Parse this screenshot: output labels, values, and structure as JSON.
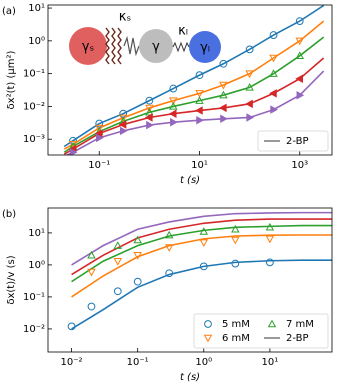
{
  "chart_data": [
    {
      "type": "scatter",
      "panel_label": "(a)",
      "x_label": "t (s)",
      "y_label": "δx²(t) (μm²)",
      "xscale": "log",
      "yscale": "log",
      "xlim": [
        0.0095,
        4400
      ],
      "ylim": [
        0.00033,
        12.4
      ],
      "xticks": [
        {
          "value": 0.1,
          "label": "10⁻¹"
        },
        {
          "value": 10,
          "label": "10¹"
        },
        {
          "value": 1000,
          "label": "10³"
        }
      ],
      "yticks": [
        {
          "value": 0.001,
          "label": "10⁻³"
        },
        {
          "value": 0.01,
          "label": "10⁻²"
        },
        {
          "value": 0.1,
          "label": "10⁻¹"
        },
        {
          "value": 1,
          "label": "10⁰"
        },
        {
          "value": 10,
          "label": "10¹"
        }
      ],
      "legend": "lower right",
      "legend_columns": 1,
      "fit_label": "2-BP",
      "fit_color": "#808080",
      "inset": {
        "gamma_s": "γₛ",
        "gamma": "γ",
        "gamma_l": "γₗ",
        "kappa_s": "κₛ",
        "kappa_l": "κₗ"
      },
      "series": [
        {
          "color": "#1f77b4",
          "marker": "o",
          "fill": "none",
          "x": [
            0.03,
            0.1,
            0.3,
            1,
            3,
            10,
            30,
            100,
            300,
            1000
          ],
          "values": [
            0.0009,
            0.003,
            0.006,
            0.015,
            0.035,
            0.09,
            0.2,
            0.55,
            1.5,
            4
          ]
        },
        {
          "color": "#ff7f0e",
          "marker": "v",
          "fill": "none",
          "x": [
            0.03,
            0.1,
            0.3,
            1,
            3,
            10,
            30,
            100,
            300,
            1000
          ],
          "values": [
            0.0007,
            0.0022,
            0.0045,
            0.009,
            0.015,
            0.025,
            0.045,
            0.1,
            0.3,
            1
          ]
        },
        {
          "color": "#2ca02c",
          "marker": "^",
          "fill": "none",
          "x": [
            0.03,
            0.1,
            0.3,
            1,
            3,
            10,
            30,
            100,
            300,
            1000
          ],
          "values": [
            0.0006,
            0.0017,
            0.0035,
            0.0066,
            0.01,
            0.015,
            0.022,
            0.038,
            0.1,
            0.35
          ]
        },
        {
          "color": "#d62728",
          "marker": "<",
          "fill": "#d62728",
          "x": [
            0.03,
            0.1,
            0.3,
            1,
            3,
            10,
            30,
            100,
            300,
            1000
          ],
          "values": [
            0.0005,
            0.0015,
            0.0028,
            0.0046,
            0.006,
            0.0075,
            0.009,
            0.012,
            0.025,
            0.07
          ]
        },
        {
          "color": "#9467bd",
          "marker": ">",
          "fill": "#9467bd",
          "x": [
            0.03,
            0.1,
            0.3,
            1,
            3,
            10,
            30,
            100,
            300,
            1000
          ],
          "values": [
            0.0004,
            0.0011,
            0.0018,
            0.0027,
            0.0033,
            0.0038,
            0.0042,
            0.0046,
            0.008,
            0.022
          ]
        },
        {
          "color": "#1f77b4",
          "x": [
            0.02,
            0.03,
            0.1,
            0.3,
            1,
            3,
            10,
            30,
            100,
            300,
            1000,
            3000
          ],
          "values": [
            0.0006,
            0.0009,
            0.003,
            0.006,
            0.015,
            0.035,
            0.09,
            0.2,
            0.55,
            1.5,
            4,
            12
          ]
        },
        {
          "color": "#ff7f0e",
          "x": [
            0.02,
            0.03,
            0.1,
            0.3,
            1,
            3,
            10,
            30,
            100,
            300,
            1000,
            3000
          ],
          "values": [
            0.0005,
            0.0007,
            0.0022,
            0.0045,
            0.009,
            0.015,
            0.025,
            0.045,
            0.1,
            0.3,
            1,
            4
          ]
        },
        {
          "color": "#2ca02c",
          "x": [
            0.02,
            0.03,
            0.1,
            0.3,
            1,
            3,
            10,
            30,
            100,
            300,
            1000,
            3000
          ],
          "values": [
            0.0004,
            0.0006,
            0.0017,
            0.0035,
            0.0066,
            0.01,
            0.015,
            0.022,
            0.038,
            0.1,
            0.35,
            1.3
          ]
        },
        {
          "color": "#d62728",
          "x": [
            0.02,
            0.03,
            0.1,
            0.3,
            1,
            3,
            10,
            30,
            100,
            300,
            1000,
            3000
          ],
          "values": [
            0.00035,
            0.0005,
            0.0015,
            0.0028,
            0.0046,
            0.006,
            0.0075,
            0.009,
            0.012,
            0.025,
            0.07,
            0.3
          ]
        },
        {
          "color": "#9467bd",
          "x": [
            0.02,
            0.03,
            0.1,
            0.3,
            1,
            3,
            10,
            30,
            100,
            300,
            1000,
            3000
          ],
          "values": [
            0.0003,
            0.0004,
            0.0011,
            0.0018,
            0.0027,
            0.0033,
            0.0038,
            0.0042,
            0.0046,
            0.008,
            0.022,
            0.12
          ]
        }
      ]
    },
    {
      "type": "scatter",
      "panel_label": "(b)",
      "x_label": "t (s)",
      "y_label": "δx(t)/v (s)",
      "xscale": "log",
      "yscale": "log",
      "xlim": [
        0.0044,
        87
      ],
      "ylim": [
        0.0019,
        60
      ],
      "xticks": [
        {
          "value": 0.01,
          "label": "10⁻²"
        },
        {
          "value": 0.1,
          "label": "10⁻¹"
        },
        {
          "value": 1,
          "label": "10⁰"
        },
        {
          "value": 10,
          "label": "10¹"
        }
      ],
      "yticks": [
        {
          "value": 0.01,
          "label": "10⁻²"
        },
        {
          "value": 0.1,
          "label": "10⁻¹"
        },
        {
          "value": 1,
          "label": "10⁰"
        },
        {
          "value": 10,
          "label": "10¹"
        }
      ],
      "legend": "lower right",
      "legend_columns": 2,
      "fit_label": "2-BP",
      "fit_color": "#808080",
      "series": [
        {
          "name": "5 mM",
          "color": "#1f77b4",
          "marker": "o",
          "fill": "none",
          "x": [
            0.01,
            0.02,
            0.05,
            0.1,
            0.3,
            1,
            3,
            10
          ],
          "values": [
            0.012,
            0.05,
            0.15,
            0.3,
            0.55,
            0.9,
            1.1,
            1.2
          ]
        },
        {
          "name": "6 mM",
          "color": "#ff7f0e",
          "marker": "v",
          "fill": "none",
          "x": [
            0.02,
            0.05,
            0.1,
            0.3,
            1,
            3,
            10
          ],
          "values": [
            0.6,
            1.3,
            2,
            3.5,
            5,
            6,
            6.5
          ]
        },
        {
          "name": "7 mM",
          "color": "#2ca02c",
          "marker": "^",
          "fill": "none",
          "x": [
            0.02,
            0.05,
            0.1,
            0.3,
            1,
            3,
            10
          ],
          "values": [
            2,
            4,
            6,
            8.5,
            11,
            13,
            15
          ]
        },
        {
          "color": "#1f77b4",
          "x": [
            0.01,
            0.03,
            0.1,
            0.3,
            1,
            3,
            10,
            30,
            87
          ],
          "values": [
            0.01,
            0.04,
            0.2,
            0.5,
            0.9,
            1.2,
            1.35,
            1.4,
            1.4
          ]
        },
        {
          "color": "#ff7f0e",
          "x": [
            0.01,
            0.03,
            0.1,
            0.3,
            1,
            3,
            10,
            30,
            87
          ],
          "values": [
            0.1,
            0.45,
            1.8,
            4,
            6.5,
            8,
            8.5,
            8.6,
            8.6
          ]
        },
        {
          "color": "#2ca02c",
          "x": [
            0.01,
            0.03,
            0.1,
            0.3,
            1,
            3,
            10,
            30,
            87
          ],
          "values": [
            0.3,
            1.3,
            4,
            8,
            12,
            15,
            16,
            17,
            17
          ]
        },
        {
          "color": "#d62728",
          "x": [
            0.01,
            0.03,
            0.1,
            0.3,
            1,
            3,
            10,
            30,
            87
          ],
          "values": [
            0.5,
            2,
            7,
            13,
            20,
            25,
            27,
            27,
            27
          ]
        },
        {
          "color": "#9467bd",
          "x": [
            0.01,
            0.03,
            0.1,
            0.3,
            1,
            3,
            10,
            30,
            87
          ],
          "values": [
            1,
            4,
            13,
            22,
            33,
            40,
            42,
            43,
            43
          ]
        }
      ]
    }
  ]
}
